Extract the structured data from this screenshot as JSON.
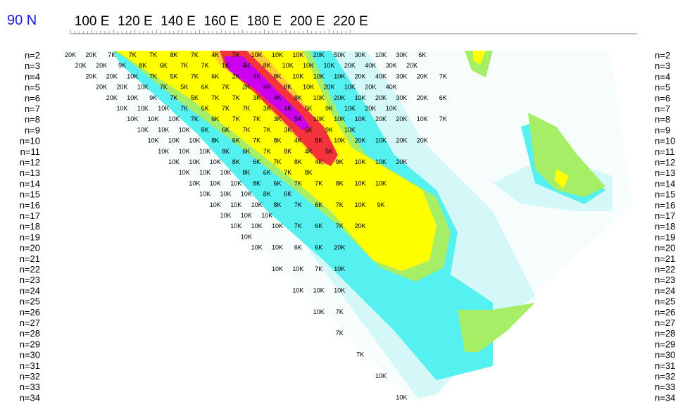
{
  "chart_data": {
    "type": "heatmap",
    "corner_label": "90 N",
    "x_ticks": [
      "100 E",
      "120 E",
      "140 E",
      "160 E",
      "180 E",
      "200 E",
      "220 E"
    ],
    "row_labels": [
      "n=2",
      "n=3",
      "n=4",
      "n=5",
      "n=6",
      "n=7",
      "n=8",
      "n=9",
      "n=10",
      "n=11",
      "n=12",
      "n=13",
      "n=14",
      "n=15",
      "n=16",
      "n=17",
      "n=18",
      "n=19",
      "n=20",
      "n=21",
      "n=22",
      "n=23",
      "n=24",
      "n=25",
      "n=26",
      "n=27",
      "n=28",
      "n=29",
      "n=30",
      "n=31",
      "n=32",
      "n=33",
      "n=34"
    ],
    "colors": {
      "white": "#f7fdfd",
      "pale": "#d4f7f7",
      "cyan": "#55f0f0",
      "green": "#a6ee66",
      "yellow": "#ffff00",
      "orange": "#ffcc33",
      "red": "#f4343a",
      "magenta": "#cc00ee",
      "axis_text": "#000000",
      "corner_text": "#1a1ad6"
    },
    "rows": [
      {
        "n": 2,
        "values": [
          "20K",
          "20K",
          "7K",
          "7K",
          "7K",
          "8K",
          "7K",
          "4K",
          "7K",
          "10K",
          "10K",
          "10K",
          "20K",
          "50K",
          "30K",
          "10K",
          "30K",
          "6K"
        ]
      },
      {
        "n": 3,
        "values": [
          "20K",
          "20K",
          "9K",
          "8K",
          "6K",
          "7K",
          "7K",
          "1K",
          "4K",
          "8K",
          "10K",
          "10K",
          "10K",
          "20K",
          "40K",
          "30K",
          "20K"
        ]
      },
      {
        "n": 4,
        "values": [
          "20K",
          "20K",
          "10K",
          "7K",
          "5K",
          "7K",
          "6K",
          "2K",
          "4K",
          "8K",
          "10K",
          "10K",
          "10K",
          "20K",
          "40K",
          "30K",
          "20K",
          "7K"
        ]
      },
      {
        "n": 5,
        "values": [
          "20K",
          "20K",
          "10K",
          "7K",
          "5K",
          "6K",
          "7K",
          "2K",
          "4K",
          "8K",
          "10K",
          "20K",
          "10K",
          "20K",
          "40K"
        ]
      },
      {
        "n": 6,
        "values": [
          "20K",
          "10K",
          "9K",
          "7K",
          "5K",
          "7K",
          "7K",
          "3K",
          "4K",
          "8K",
          "10K",
          "20K",
          "10K",
          "20K",
          "30K",
          "20K",
          "6K"
        ]
      },
      {
        "n": 7,
        "values": [
          "10K",
          "10K",
          "10K",
          "7K",
          "5K",
          "7K",
          "7K",
          "3K",
          "4K",
          "5K",
          "9K",
          "10K",
          "20K",
          "10K"
        ]
      },
      {
        "n": 8,
        "values": [
          "10K",
          "10K",
          "10K",
          "7K",
          "6K",
          "7K",
          "7K",
          "3K",
          "5K",
          "10K",
          "10K",
          "10K",
          "20K",
          "20K",
          "10K",
          "7K"
        ]
      },
      {
        "n": 9,
        "values": [
          "10K",
          "10K",
          "10K",
          "8K",
          "6K",
          "7K",
          "7K",
          "3K",
          "5K",
          "9K",
          "10K"
        ]
      },
      {
        "n": 10,
        "values": [
          "10K",
          "10K",
          "10K",
          "8K",
          "6K",
          "7K",
          "8K",
          "4K",
          "5K",
          "10K",
          "20K",
          "10K",
          "20K",
          "20K"
        ]
      },
      {
        "n": 11,
        "values": [
          "10K",
          "10K",
          "10K",
          "8K",
          "6K",
          "7K",
          "8K",
          "4K",
          "5K"
        ]
      },
      {
        "n": 12,
        "values": [
          "10K",
          "10K",
          "10K",
          "8K",
          "6K",
          "7K",
          "8K",
          "4K",
          "9K",
          "10K",
          "10K",
          "20K"
        ]
      },
      {
        "n": 13,
        "values": [
          "10K",
          "10K",
          "10K",
          "8K",
          "6K",
          "7K",
          "8K"
        ]
      },
      {
        "n": 14,
        "values": [
          "10K",
          "10K",
          "10K",
          "8K",
          "6K",
          "7K",
          "7K",
          "8K",
          "10K",
          "10K"
        ]
      },
      {
        "n": 15,
        "values": [
          "10K",
          "10K",
          "10K",
          "8K",
          "6K"
        ]
      },
      {
        "n": 16,
        "values": [
          "10K",
          "10K",
          "10K",
          "8K",
          "7K",
          "6K",
          "7K",
          "10K",
          "9K"
        ]
      },
      {
        "n": 17,
        "values": [
          "10K",
          "10K",
          "10K"
        ]
      },
      {
        "n": 18,
        "values": [
          "10K",
          "10K",
          "10K",
          "7K",
          "6K",
          "7K",
          "20K"
        ]
      },
      {
        "n": 19,
        "values": [
          "10K"
        ]
      },
      {
        "n": 20,
        "values": [
          "10K",
          "10K",
          "6K",
          "6K",
          "20K"
        ]
      },
      {
        "n": 21,
        "values": []
      },
      {
        "n": 22,
        "values": [
          "10K",
          "10K",
          "7K",
          "10K"
        ]
      },
      {
        "n": 23,
        "values": []
      },
      {
        "n": 24,
        "values": [
          "10K",
          "10K",
          "10K"
        ]
      },
      {
        "n": 25,
        "values": []
      },
      {
        "n": 26,
        "values": [
          "10K",
          "7K"
        ]
      },
      {
        "n": 27,
        "values": []
      },
      {
        "n": 28,
        "values": [
          "7K"
        ]
      },
      {
        "n": 29,
        "values": []
      },
      {
        "n": 30,
        "values": [
          "7K"
        ]
      },
      {
        "n": 31,
        "values": []
      },
      {
        "n": 32,
        "values": [
          "10K"
        ]
      },
      {
        "n": 33,
        "values": []
      },
      {
        "n": 34,
        "values": [
          "10K"
        ]
      }
    ]
  }
}
